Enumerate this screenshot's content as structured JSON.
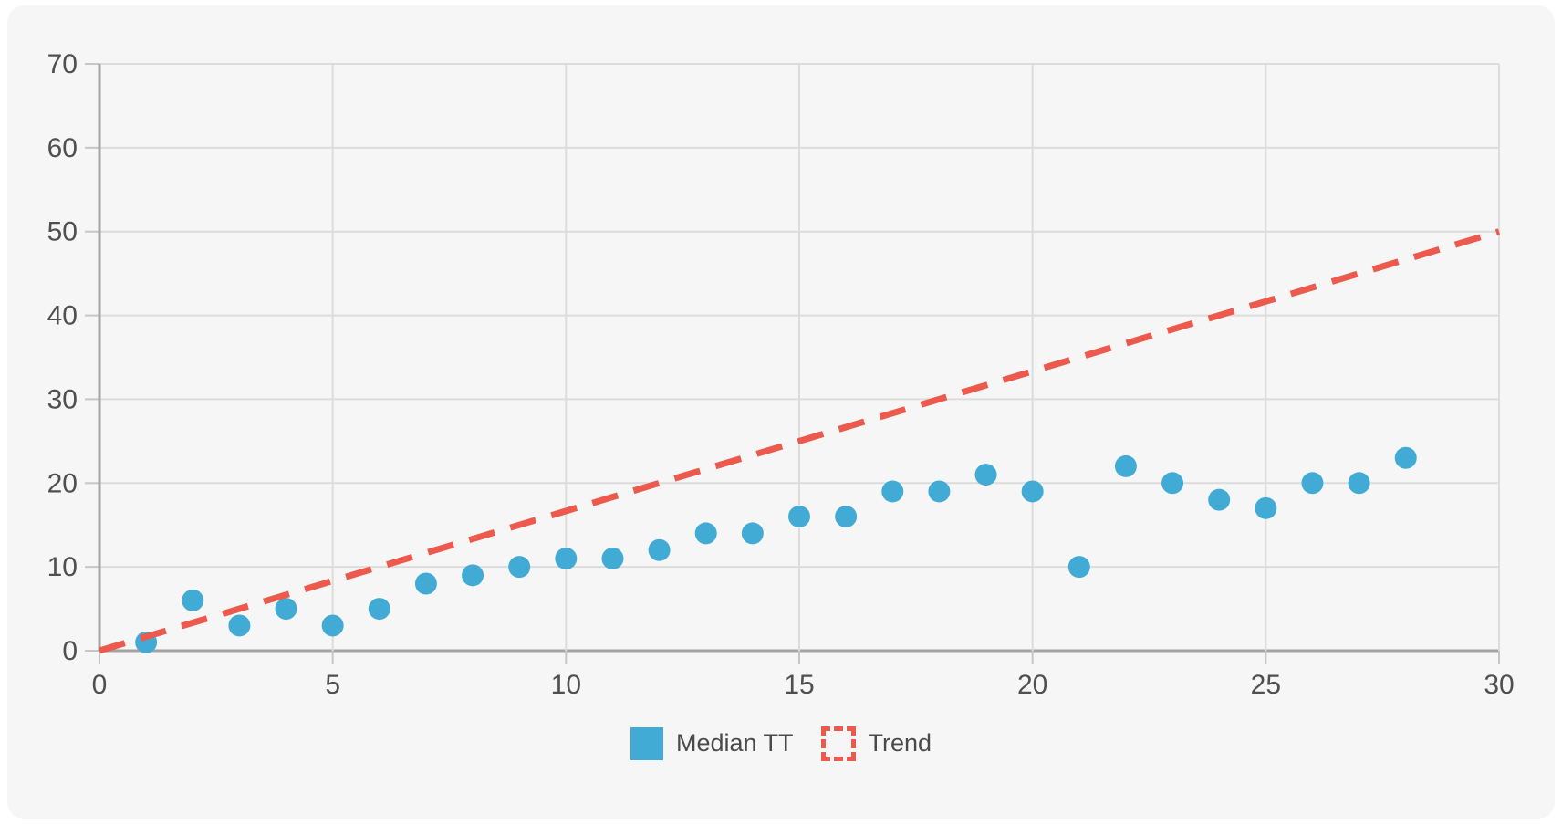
{
  "page": {
    "background": "#ffffff",
    "card_background": "#f6f6f6"
  },
  "colors": {
    "grid": "#dcdcdc",
    "axis": "#a3a3a3",
    "tick": "#c6c6c6",
    "tick_label": "#4f4f4f",
    "legend_text": "#4a4a4a",
    "series_blue": "#42abd5",
    "series_red": "#eb5a4d"
  },
  "chart_data": {
    "type": "scatter",
    "title": "",
    "xlabel": "",
    "ylabel": "",
    "xlim": [
      0,
      30
    ],
    "ylim": [
      0,
      70
    ],
    "x_ticks": [
      0,
      5,
      10,
      15,
      20,
      25,
      30
    ],
    "y_ticks": [
      0,
      10,
      20,
      30,
      40,
      50,
      60,
      70
    ],
    "grid": true,
    "legend_position": "bottom",
    "series": [
      {
        "name": "Median TT",
        "type": "scatter",
        "color": "#42abd5",
        "points": [
          [
            1,
            1
          ],
          [
            2,
            6
          ],
          [
            3,
            3
          ],
          [
            4,
            5
          ],
          [
            5,
            3
          ],
          [
            6,
            5
          ],
          [
            7,
            8
          ],
          [
            8,
            9
          ],
          [
            9,
            10
          ],
          [
            10,
            11
          ],
          [
            11,
            11
          ],
          [
            12,
            12
          ],
          [
            13,
            14
          ],
          [
            14,
            14
          ],
          [
            15,
            16
          ],
          [
            16,
            16
          ],
          [
            17,
            19
          ],
          [
            18,
            19
          ],
          [
            19,
            21
          ],
          [
            20,
            19
          ],
          [
            21,
            10
          ],
          [
            22,
            22
          ],
          [
            23,
            20
          ],
          [
            24,
            18
          ],
          [
            25,
            17
          ],
          [
            26,
            20
          ],
          [
            27,
            20
          ],
          [
            28,
            23
          ]
        ]
      },
      {
        "name": "Trend",
        "type": "line",
        "style": "dashed",
        "color": "#eb5a4d",
        "points": [
          [
            0,
            0
          ],
          [
            30,
            50
          ]
        ]
      }
    ],
    "legend": [
      {
        "label": "Median TT",
        "marker": "square",
        "color": "#42abd5"
      },
      {
        "label": "Trend",
        "marker": "dashed-square",
        "color": "#eb5a4d"
      }
    ]
  }
}
